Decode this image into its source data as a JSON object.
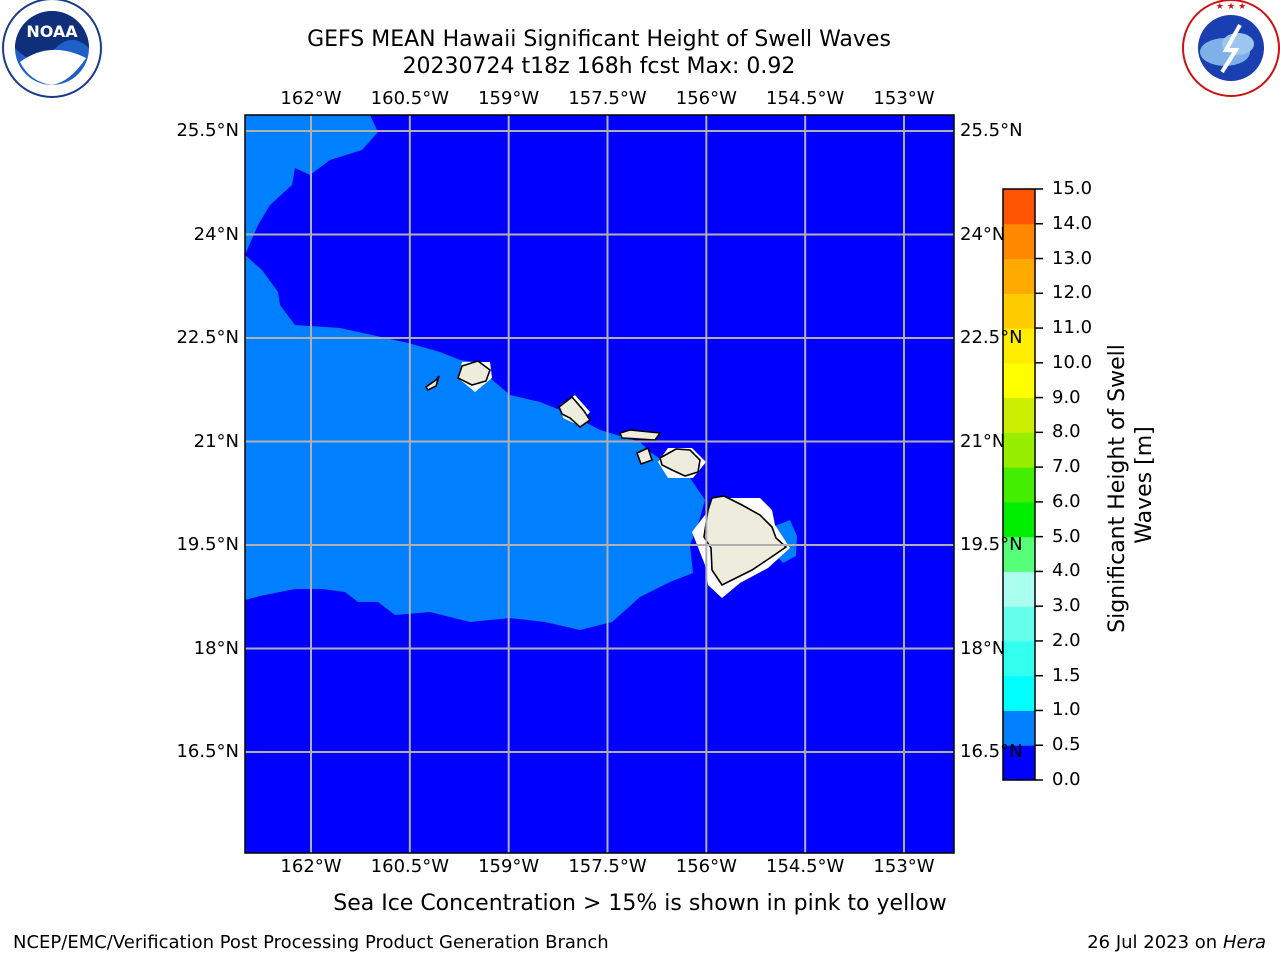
{
  "header": {
    "title_line1": "GEFS MEAN Hawaii Significant Height of Swell Waves",
    "title_line2": "20230724 t18z 168h fcst   Max: 0.92"
  },
  "logos": {
    "left": {
      "name": "noaa-logo",
      "text": "NOAA",
      "ring_text": "NATIONAL OCEANIC AND ATMOSPHERIC ADMINISTRATION · U.S. DEPARTMENT OF COMMERCE"
    },
    "right": {
      "name": "nws-logo",
      "ring_text": "NATIONAL WEATHER SERVICE"
    }
  },
  "map": {
    "lon_ticks": [
      "162°W",
      "160.5°W",
      "159°W",
      "157.5°W",
      "156°W",
      "154.5°W",
      "153°W"
    ],
    "lat_ticks": [
      "25.5°N",
      "24°N",
      "22.5°N",
      "21°N",
      "19.5°N",
      "18°N",
      "16.5°N"
    ],
    "lon_values": [
      -162,
      -160.5,
      -159,
      -157.5,
      -156,
      -154.5,
      -153
    ],
    "lat_values": [
      25.5,
      24,
      22.5,
      21,
      19.5,
      18,
      16.5
    ],
    "grid": true,
    "colors": {
      "deep_blue": "#0000ff",
      "light_blue": "#0080ff",
      "land": "#eeecdc",
      "grid": "#b0b0b0"
    }
  },
  "colorbar": {
    "label": "Significant Height of Swell Waves [m]",
    "ticks": [
      "0.0",
      "0.5",
      "1.0",
      "1.5",
      "2.0",
      "3.0",
      "4.0",
      "5.0",
      "6.0",
      "7.0",
      "8.0",
      "9.0",
      "10.0",
      "11.0",
      "12.0",
      "13.0",
      "14.0",
      "15.0"
    ],
    "colors": [
      "#0000ff",
      "#0080ff",
      "#00ffff",
      "#33ffee",
      "#66ffee",
      "#aaffee",
      "#55ff77",
      "#00ee00",
      "#44ee00",
      "#99ee00",
      "#ccee00",
      "#ffff00",
      "#ffee00",
      "#ffcc00",
      "#ffaa00",
      "#ff8800",
      "#ff5500",
      "#ff3300",
      "#ff0000"
    ]
  },
  "note": "Sea Ice Concentration > 15% is shown in pink to yellow",
  "footer": {
    "left": "NCEP/EMC/Verification Post Processing Product Generation Branch",
    "right_date": "26 Jul 2023 on",
    "right_host": "Hera"
  }
}
